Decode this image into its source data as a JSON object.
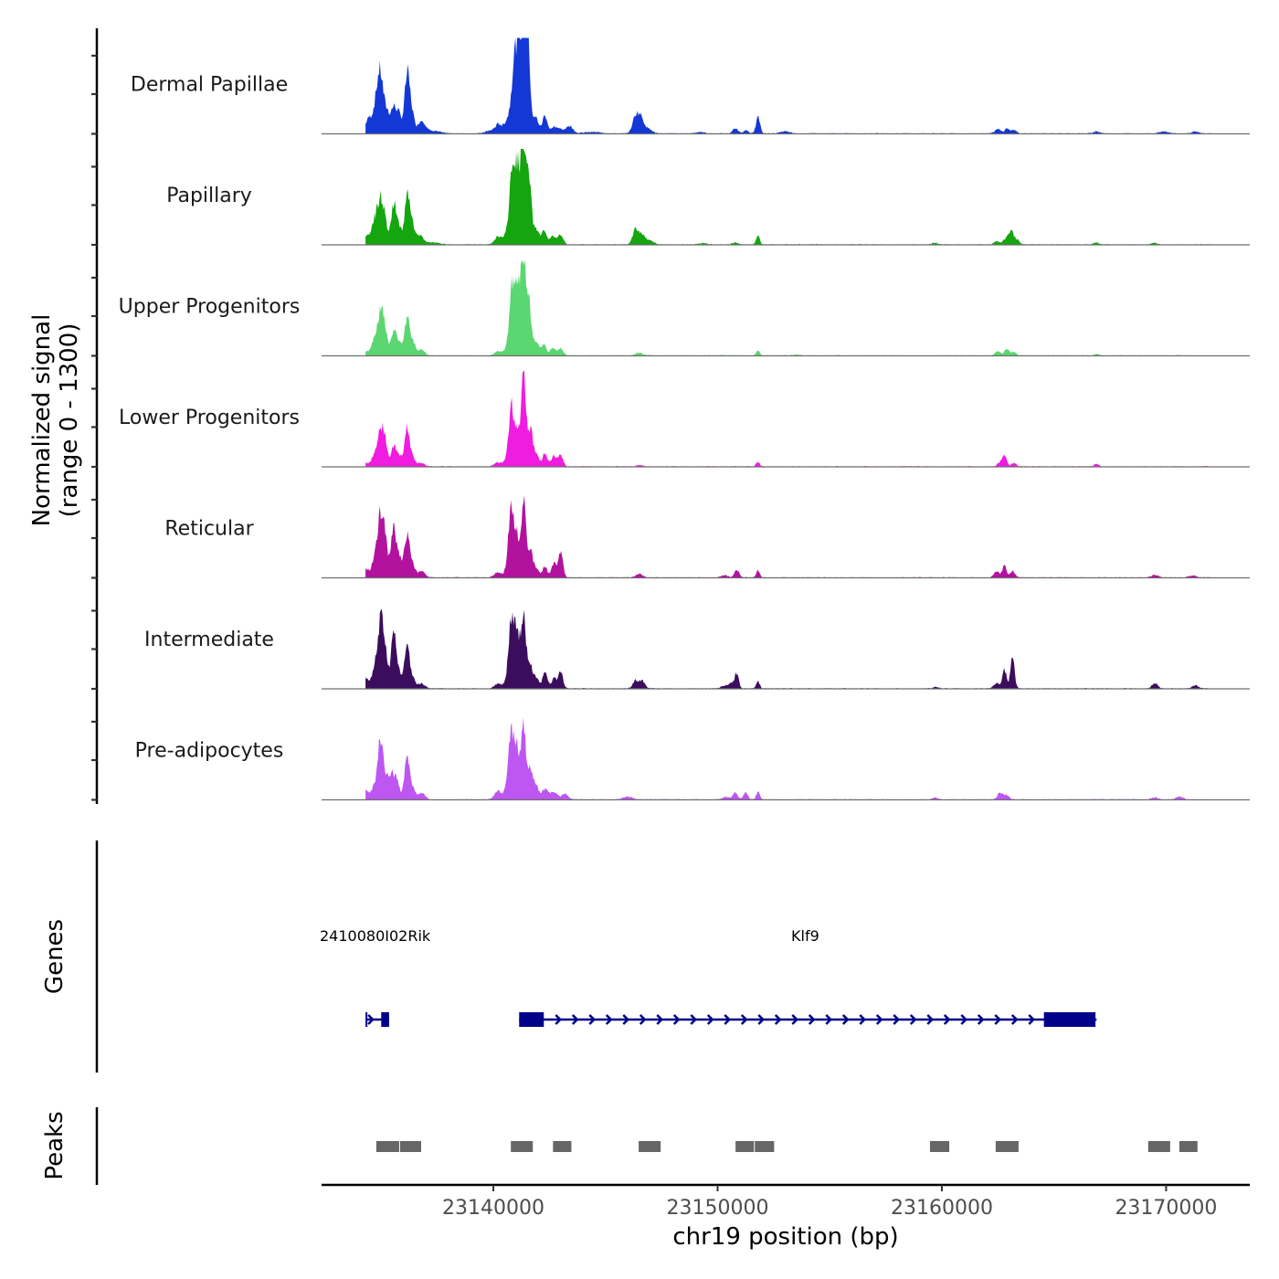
{
  "chart_data": {
    "type": "area",
    "title": "",
    "xlabel": "chr19 position (bp)",
    "ylabel": "Normalized signal\n(range 0 - 1300)",
    "ylabel_lines": [
      "Normalized signal",
      "(range 0 - 1300)"
    ],
    "chromosome": "chr19",
    "xlim": [
      23132340,
      23173730
    ],
    "ylim": [
      0,
      1300
    ],
    "x_ticks": [
      23140000,
      23150000,
      23160000,
      23170000
    ],
    "x_tick_labels": [
      "23140000",
      "23150000",
      "23160000",
      "23170000"
    ],
    "signal_extent": [
      23134300,
      23172000
    ],
    "series": [
      {
        "name": "Dermal Papillae",
        "color": "#1338d6",
        "peaks": [
          [
            23134400,
            180,
            120
          ],
          [
            23134700,
            260,
            150
          ],
          [
            23134950,
            830,
            140
          ],
          [
            23135250,
            260,
            120
          ],
          [
            23135550,
            350,
            130
          ],
          [
            23135800,
            240,
            120
          ],
          [
            23136150,
            780,
            110
          ],
          [
            23136350,
            300,
            120
          ],
          [
            23136800,
            180,
            160
          ],
          [
            23137300,
            40,
            300
          ],
          [
            23139900,
            40,
            250
          ],
          [
            23140250,
            120,
            150
          ],
          [
            23140600,
            160,
            120
          ],
          [
            23140950,
            1050,
            140
          ],
          [
            23141200,
            950,
            130
          ],
          [
            23141400,
            1270,
            120
          ],
          [
            23141550,
            900,
            110
          ],
          [
            23141900,
            220,
            120
          ],
          [
            23142300,
            260,
            110
          ],
          [
            23142700,
            90,
            130
          ],
          [
            23143000,
            60,
            130
          ],
          [
            23143400,
            110,
            150
          ],
          [
            23144400,
            20,
            400
          ],
          [
            23146350,
            240,
            140
          ],
          [
            23146600,
            200,
            140
          ],
          [
            23146950,
            60,
            150
          ],
          [
            23149200,
            20,
            200
          ],
          [
            23150800,
            70,
            120
          ],
          [
            23151250,
            50,
            100
          ],
          [
            23151800,
            230,
            90
          ],
          [
            23153000,
            30,
            200
          ],
          [
            23162500,
            60,
            130
          ],
          [
            23162900,
            70,
            100
          ],
          [
            23163200,
            50,
            120
          ],
          [
            23166900,
            30,
            150
          ],
          [
            23169900,
            30,
            200
          ],
          [
            23171300,
            25,
            150
          ]
        ]
      },
      {
        "name": "Papillary",
        "color": "#14a50f",
        "peaks": [
          [
            23134300,
            100,
            150
          ],
          [
            23134700,
            330,
            150
          ],
          [
            23134950,
            500,
            120
          ],
          [
            23135150,
            350,
            120
          ],
          [
            23135550,
            560,
            110
          ],
          [
            23135800,
            250,
            120
          ],
          [
            23136150,
            620,
            110
          ],
          [
            23136350,
            280,
            120
          ],
          [
            23136700,
            130,
            160
          ],
          [
            23137300,
            30,
            300
          ],
          [
            23140200,
            110,
            150
          ],
          [
            23140550,
            130,
            120
          ],
          [
            23140850,
            1100,
            120
          ],
          [
            23141100,
            950,
            120
          ],
          [
            23141350,
            1260,
            110
          ],
          [
            23141600,
            900,
            100
          ],
          [
            23141900,
            230,
            120
          ],
          [
            23142250,
            200,
            110
          ],
          [
            23142650,
            120,
            130
          ],
          [
            23143000,
            140,
            110
          ],
          [
            23146350,
            230,
            130
          ],
          [
            23146650,
            140,
            130
          ],
          [
            23147000,
            60,
            150
          ],
          [
            23149400,
            15,
            200
          ],
          [
            23150800,
            30,
            120
          ],
          [
            23151800,
            130,
            80
          ],
          [
            23159700,
            20,
            150
          ],
          [
            23162450,
            50,
            120
          ],
          [
            23162850,
            90,
            110
          ],
          [
            23163100,
            200,
            100
          ],
          [
            23163350,
            70,
            100
          ],
          [
            23166900,
            25,
            120
          ],
          [
            23169500,
            20,
            150
          ]
        ]
      },
      {
        "name": "Upper Progenitors",
        "color": "#5bd670",
        "peaks": [
          [
            23134300,
            60,
            150
          ],
          [
            23134700,
            230,
            130
          ],
          [
            23134950,
            520,
            120
          ],
          [
            23135150,
            380,
            110
          ],
          [
            23135550,
            340,
            120
          ],
          [
            23135800,
            180,
            120
          ],
          [
            23136150,
            520,
            110
          ],
          [
            23136400,
            200,
            120
          ],
          [
            23136800,
            80,
            150
          ],
          [
            23140200,
            60,
            150
          ],
          [
            23140600,
            100,
            120
          ],
          [
            23140850,
            1000,
            120
          ],
          [
            23141100,
            880,
            110
          ],
          [
            23141350,
            1380,
            110
          ],
          [
            23141600,
            700,
            100
          ],
          [
            23141900,
            200,
            120
          ],
          [
            23142250,
            150,
            110
          ],
          [
            23142650,
            110,
            120
          ],
          [
            23143000,
            100,
            120
          ],
          [
            23146500,
            40,
            150
          ],
          [
            23151800,
            70,
            80
          ],
          [
            23153500,
            15,
            150
          ],
          [
            23162500,
            60,
            120
          ],
          [
            23162900,
            90,
            110
          ],
          [
            23163200,
            50,
            110
          ],
          [
            23166900,
            20,
            120
          ]
        ]
      },
      {
        "name": "Lower Progenitors",
        "color": "#f01ce0",
        "peaks": [
          [
            23134300,
            50,
            150
          ],
          [
            23134700,
            150,
            130
          ],
          [
            23134950,
            440,
            120
          ],
          [
            23135150,
            380,
            110
          ],
          [
            23135550,
            260,
            120
          ],
          [
            23135800,
            140,
            120
          ],
          [
            23136150,
            520,
            110
          ],
          [
            23136400,
            130,
            120
          ],
          [
            23136800,
            50,
            150
          ],
          [
            23140200,
            60,
            150
          ],
          [
            23140600,
            100,
            120
          ],
          [
            23140800,
            800,
            110
          ],
          [
            23141050,
            500,
            110
          ],
          [
            23141350,
            1350,
            110
          ],
          [
            23141650,
            500,
            100
          ],
          [
            23141900,
            200,
            120
          ],
          [
            23142300,
            180,
            110
          ],
          [
            23142700,
            140,
            120
          ],
          [
            23143000,
            160,
            110
          ],
          [
            23146500,
            20,
            150
          ],
          [
            23151800,
            60,
            80
          ],
          [
            23162600,
            60,
            110
          ],
          [
            23162800,
            170,
            90
          ],
          [
            23163200,
            50,
            110
          ],
          [
            23166900,
            40,
            90
          ]
        ]
      },
      {
        "name": "Reticular",
        "color": "#b3129f",
        "peaks": [
          [
            23134300,
            130,
            130
          ],
          [
            23134700,
            260,
            130
          ],
          [
            23134950,
            710,
            120
          ],
          [
            23135150,
            620,
            120
          ],
          [
            23135550,
            700,
            110
          ],
          [
            23135800,
            280,
            120
          ],
          [
            23136150,
            630,
            110
          ],
          [
            23136400,
            160,
            120
          ],
          [
            23136800,
            90,
            150
          ],
          [
            23140200,
            70,
            150
          ],
          [
            23140600,
            100,
            120
          ],
          [
            23140800,
            1000,
            110
          ],
          [
            23141050,
            550,
            110
          ],
          [
            23141350,
            1120,
            110
          ],
          [
            23141650,
            350,
            100
          ],
          [
            23141900,
            140,
            120
          ],
          [
            23142300,
            150,
            110
          ],
          [
            23142700,
            200,
            110
          ],
          [
            23143000,
            360,
            100
          ],
          [
            23146500,
            50,
            150
          ],
          [
            23150300,
            30,
            150
          ],
          [
            23150850,
            120,
            100
          ],
          [
            23151800,
            100,
            80
          ],
          [
            23162450,
            80,
            130
          ],
          [
            23162800,
            170,
            90
          ],
          [
            23163150,
            90,
            110
          ],
          [
            23169500,
            40,
            150
          ],
          [
            23171200,
            30,
            150
          ]
        ]
      },
      {
        "name": "Intermediate",
        "color": "#3b0d5c",
        "peaks": [
          [
            23134300,
            150,
            130
          ],
          [
            23134700,
            250,
            130
          ],
          [
            23134950,
            800,
            120
          ],
          [
            23135150,
            620,
            120
          ],
          [
            23135550,
            760,
            110
          ],
          [
            23135800,
            220,
            120
          ],
          [
            23136150,
            590,
            110
          ],
          [
            23136400,
            150,
            120
          ],
          [
            23136800,
            70,
            150
          ],
          [
            23140200,
            70,
            150
          ],
          [
            23140600,
            90,
            120
          ],
          [
            23140800,
            1000,
            110
          ],
          [
            23141050,
            850,
            110
          ],
          [
            23141350,
            1090,
            110
          ],
          [
            23141650,
            300,
            100
          ],
          [
            23141900,
            160,
            120
          ],
          [
            23142300,
            220,
            110
          ],
          [
            23142700,
            140,
            110
          ],
          [
            23143000,
            250,
            100
          ],
          [
            23146350,
            110,
            130
          ],
          [
            23146650,
            100,
            120
          ],
          [
            23150300,
            40,
            150
          ],
          [
            23150600,
            70,
            110
          ],
          [
            23150850,
            200,
            90
          ],
          [
            23151800,
            100,
            80
          ],
          [
            23159700,
            20,
            120
          ],
          [
            23162450,
            80,
            130
          ],
          [
            23162800,
            260,
            90
          ],
          [
            23163150,
            430,
            90
          ],
          [
            23169500,
            70,
            130
          ],
          [
            23171300,
            40,
            150
          ]
        ]
      },
      {
        "name": "Pre-adipocytes",
        "color": "#be56f2",
        "peaks": [
          [
            23134300,
            140,
            130
          ],
          [
            23134700,
            200,
            130
          ],
          [
            23134950,
            760,
            100
          ],
          [
            23135150,
            350,
            120
          ],
          [
            23135450,
            360,
            120
          ],
          [
            23135700,
            250,
            120
          ],
          [
            23136150,
            640,
            110
          ],
          [
            23136400,
            150,
            120
          ],
          [
            23136800,
            100,
            150
          ],
          [
            23140200,
            120,
            150
          ],
          [
            23140600,
            150,
            120
          ],
          [
            23140800,
            900,
            110
          ],
          [
            23141050,
            700,
            110
          ],
          [
            23141350,
            1030,
            110
          ],
          [
            23141650,
            400,
            100
          ],
          [
            23141900,
            200,
            120
          ],
          [
            23142300,
            150,
            130
          ],
          [
            23142700,
            110,
            150
          ],
          [
            23143200,
            80,
            150
          ],
          [
            23146000,
            40,
            200
          ],
          [
            23150400,
            40,
            150
          ],
          [
            23150800,
            100,
            100
          ],
          [
            23151250,
            100,
            100
          ],
          [
            23151800,
            110,
            80
          ],
          [
            23159700,
            30,
            120
          ],
          [
            23162600,
            100,
            120
          ],
          [
            23162900,
            60,
            110
          ],
          [
            23169500,
            30,
            150
          ],
          [
            23170600,
            40,
            150
          ]
        ]
      }
    ],
    "genes_track": {
      "label": "Genes",
      "color": "#00008b",
      "genes": [
        {
          "name": "2410080I02Rik",
          "strand": "+",
          "start": 23134300,
          "end": 23135350,
          "exons": [
            [
              23134300,
              23134350
            ],
            [
              23135000,
              23135350
            ]
          ]
        },
        {
          "name": "Klf9",
          "strand": "+",
          "start": 23141150,
          "end": 23166900,
          "exons": [
            [
              23141150,
              23142250
            ],
            [
              23164550,
              23166850
            ]
          ]
        }
      ]
    },
    "peaks_track": {
      "label": "Peaks",
      "color": "#666666",
      "regions": [
        [
          23134780,
          23135800
        ],
        [
          23135840,
          23136780
        ],
        [
          23140780,
          23141760
        ],
        [
          23142660,
          23143480
        ],
        [
          23146480,
          23147460
        ],
        [
          23150800,
          23151620
        ],
        [
          23151660,
          23152520
        ],
        [
          23159470,
          23160330
        ],
        [
          23162400,
          23163420
        ],
        [
          23169200,
          23170180
        ],
        [
          23170590,
          23171400
        ]
      ]
    }
  }
}
